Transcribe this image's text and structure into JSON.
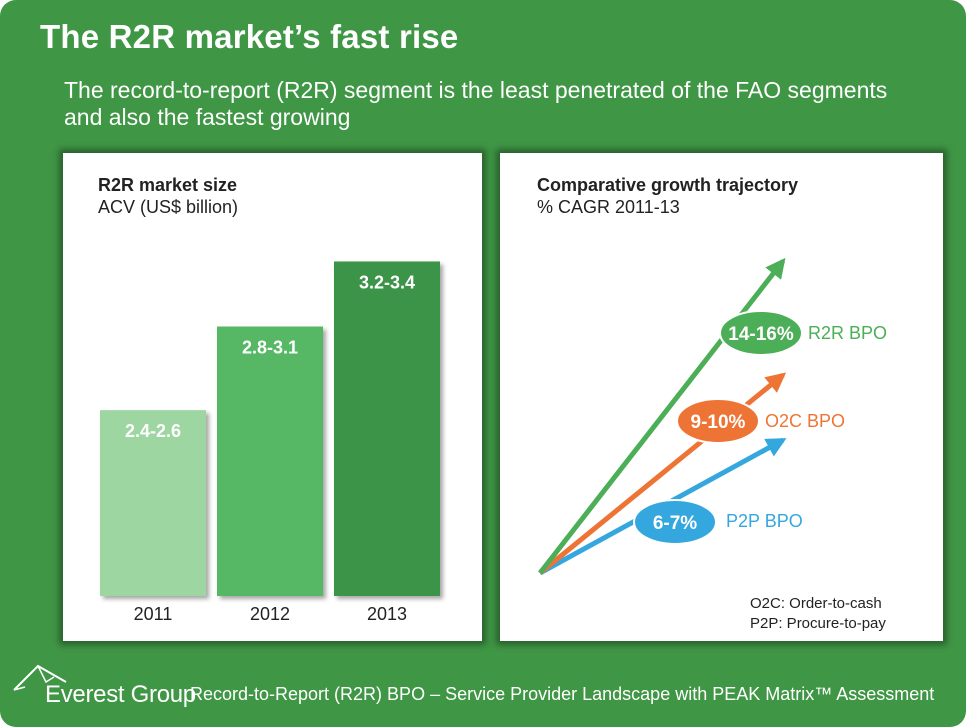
{
  "slide": {
    "title": "The R2R market’s fast rise",
    "subtitle": "The record-to-report (R2R) segment is the least penetrated of the FAO segments and also the fastest growing"
  },
  "colors": {
    "background": "#3f9645",
    "bar_2011": "#9dd6a0",
    "bar_2012": "#56b865",
    "bar_2013": "#3b9446",
    "r2r": "#4cae57",
    "o2c": "#ee7436",
    "p2p": "#35a7df"
  },
  "chart_data": [
    {
      "type": "bar",
      "title": "R2R market size",
      "subtitle": "ACV (US$ billion)",
      "categories": [
        "2011",
        "2012",
        "2013"
      ],
      "values": [
        2.5,
        2.95,
        3.3
      ],
      "data_labels": [
        "2.4-2.6",
        "2.8-3.1",
        "3.2-3.4"
      ],
      "ylim": [
        1.5,
        3.55
      ],
      "grid": false
    },
    {
      "type": "line",
      "title": "Comparative growth trajectory",
      "subtitle": "% CAGR 2011-13",
      "series": [
        {
          "name": "R2R BPO",
          "label": "14-16%",
          "cagr_mid": 15,
          "color": "#4cae57"
        },
        {
          "name": "O2C BPO",
          "label": "9-10%",
          "cagr_mid": 9.5,
          "color": "#ee7436"
        },
        {
          "name": "P2P BPO",
          "label": "6-7%",
          "cagr_mid": 6.5,
          "color": "#35a7df"
        }
      ],
      "notes": [
        "O2C: Order-to-cash",
        "P2P: Procure-to-pay"
      ],
      "grid": false
    }
  ],
  "footer": {
    "logo": "Everest Group",
    "text": "Record-to-Report (R2R) BPO – Service Provider Landscape with PEAK Matrix™ Assessment"
  }
}
